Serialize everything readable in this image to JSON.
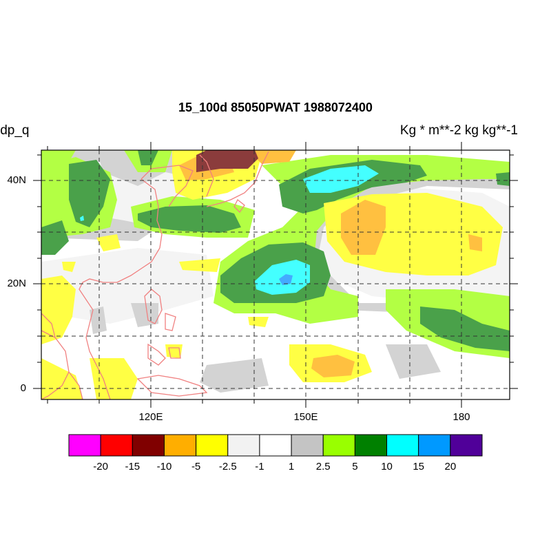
{
  "map": {
    "title": "15_100d 85050PWAT  1988072400",
    "left_string": "ldp_q",
    "right_string": "Kg  * m**-2 kg kg**-1",
    "lat_labels": [
      "40N",
      "20N",
      "0"
    ],
    "lon_labels": [
      "120E",
      "150E",
      "180"
    ]
  },
  "colorbar": {
    "colors": [
      "#ff00ff",
      "#ff0000",
      "#800000",
      "#ffae00",
      "#ffff00",
      "#f2f2f2",
      "#ffffff",
      "#c4c4c4",
      "#99ff00",
      "#008000",
      "#00ffff",
      "#0099ff",
      "#500099"
    ],
    "labels": [
      "-20",
      "-15",
      "-10",
      "-5",
      "-2.5",
      "-1",
      "1",
      "2.5",
      "5",
      "10",
      "15",
      "20"
    ]
  },
  "palette": {
    "coastline": "#f08080",
    "dark_green_fill": "#4aa14a",
    "light_green_fill": "#b3ff44",
    "orange_fill": "#ffc040",
    "brown_fill": "#8b3c3c",
    "cyan_fill": "#44ffff",
    "blue_fill": "#44aaff",
    "yellow_fill": "#ffff44",
    "light_gray_fill": "#f4f4f4",
    "gray_fill": "#d3d3d3"
  }
}
